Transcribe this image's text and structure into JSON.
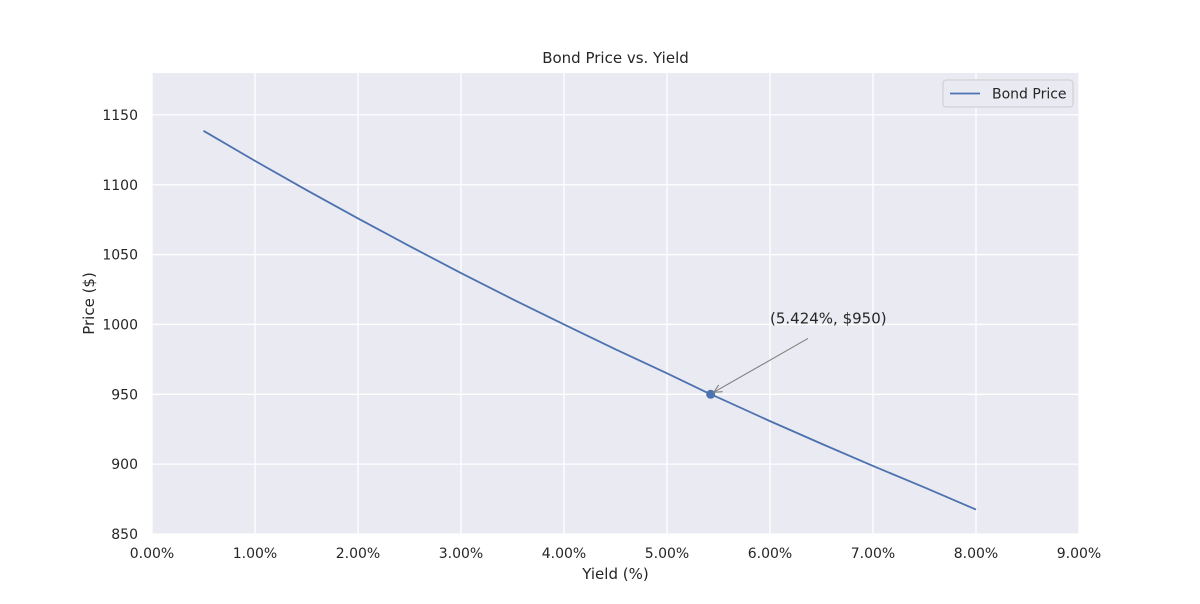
{
  "chart_data": {
    "type": "line",
    "title": "Bond Price vs. Yield",
    "xlabel": "Yield (%)",
    "ylabel": "Price ($)",
    "xlim": [
      0.0,
      9.0
    ],
    "ylim": [
      850,
      1180
    ],
    "x_ticks": [
      0,
      1,
      2,
      3,
      4,
      5,
      6,
      7,
      8,
      9
    ],
    "x_tick_labels": [
      "0.00%",
      "1.00%",
      "2.00%",
      "3.00%",
      "4.00%",
      "5.00%",
      "6.00%",
      "7.00%",
      "8.00%",
      "9.00%"
    ],
    "y_ticks": [
      850,
      900,
      950,
      1000,
      1050,
      1100,
      1150
    ],
    "y_tick_labels": [
      "850",
      "900",
      "950",
      "1000",
      "1050",
      "1100",
      "1150"
    ],
    "grid": true,
    "legend_position": "top-right",
    "series": [
      {
        "name": "Bond Price",
        "color": "#4c72b0",
        "x": [
          0.5,
          1.0,
          1.5,
          2.0,
          2.5,
          3.0,
          3.5,
          4.0,
          4.5,
          5.0,
          5.424,
          5.5,
          6.0,
          6.5,
          7.0,
          7.5,
          8.0
        ],
        "y": [
          1138.6,
          1117.1,
          1096.2,
          1075.9,
          1056.1,
          1036.8,
          1018.1,
          1000.0,
          982.2,
          965.0,
          950.0,
          947.6,
          930.8,
          914.6,
          898.7,
          883.3,
          867.5
        ]
      }
    ],
    "highlight_point": {
      "x": 5.424,
      "y": 950,
      "label": "(5.424%,  $950)",
      "label_x": 6.0,
      "label_y": 1000
    },
    "colors": {
      "plot_background": "#eaeaf2",
      "grid": "#ffffff",
      "line": "#4c72b0",
      "arrow": "#808080",
      "text": "#262626"
    }
  }
}
